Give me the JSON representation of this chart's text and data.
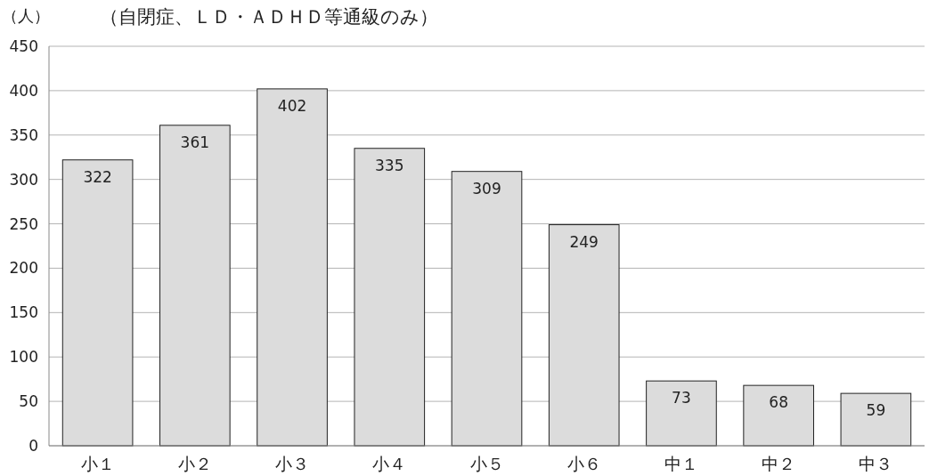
{
  "chart_data": {
    "type": "bar",
    "title": "（自閉症、ＬＤ・ＡＤＨＤ等通級のみ）",
    "ylabel": "（人）",
    "categories": [
      "小１",
      "小２",
      "小３",
      "小４",
      "小５",
      "小６",
      "中１",
      "中２",
      "中３"
    ],
    "values": [
      322,
      361,
      402,
      335,
      309,
      249,
      73,
      68,
      59
    ],
    "color": "#dcdcdc",
    "ylim": [
      0,
      450
    ],
    "yticks": [
      0,
      50,
      100,
      150,
      200,
      250,
      300,
      350,
      400,
      450
    ],
    "grid": "y",
    "data_labels": true
  }
}
